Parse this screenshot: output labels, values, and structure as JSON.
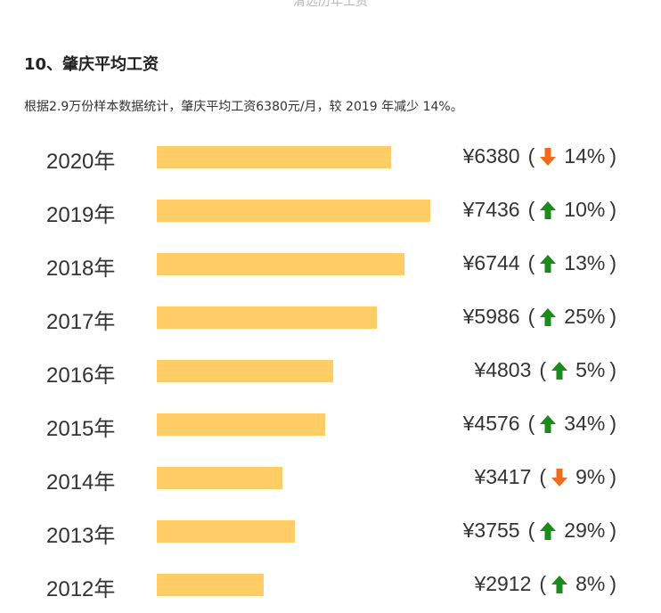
{
  "page": {
    "top_caption": "清远历年工资",
    "heading": "10、肇庆平均工资",
    "summary": "根据2.9万份样本数据统计，肇庆平均工资6380元/月，较 2019 年减少 14%。"
  },
  "colors": {
    "bar": "#ffcc66",
    "up": "#1a8a1a",
    "down": "#f26b1d"
  },
  "chart_data": {
    "type": "bar",
    "orientation": "horizontal",
    "title": "",
    "xlabel": "",
    "ylabel": "",
    "categories": [
      "2020年",
      "2019年",
      "2018年",
      "2017年",
      "2016年",
      "2015年",
      "2014年",
      "2013年",
      "2012年"
    ],
    "values": [
      6380,
      7436,
      6744,
      5986,
      4803,
      4576,
      3417,
      3755,
      2912
    ],
    "value_labels": [
      "¥6380",
      "¥7436",
      "¥6744",
      "¥5986",
      "¥4803",
      "¥4576",
      "¥3417",
      "¥3755",
      "¥2912"
    ],
    "change_direction": [
      "down",
      "up",
      "up",
      "up",
      "up",
      "up",
      "down",
      "up",
      "up"
    ],
    "change_labels": [
      "14%",
      "10%",
      "13%",
      "25%",
      "5%",
      "34%",
      "9%",
      "29%",
      "8%"
    ],
    "change_icons": [
      "arrow-down-icon",
      "arrow-up-icon",
      "arrow-up-icon",
      "arrow-up-icon",
      "arrow-up-icon",
      "arrow-up-icon",
      "arrow-down-icon",
      "arrow-up-icon",
      "arrow-up-icon"
    ],
    "xlim": [
      0,
      7436
    ],
    "grid": false,
    "legend": "none"
  }
}
